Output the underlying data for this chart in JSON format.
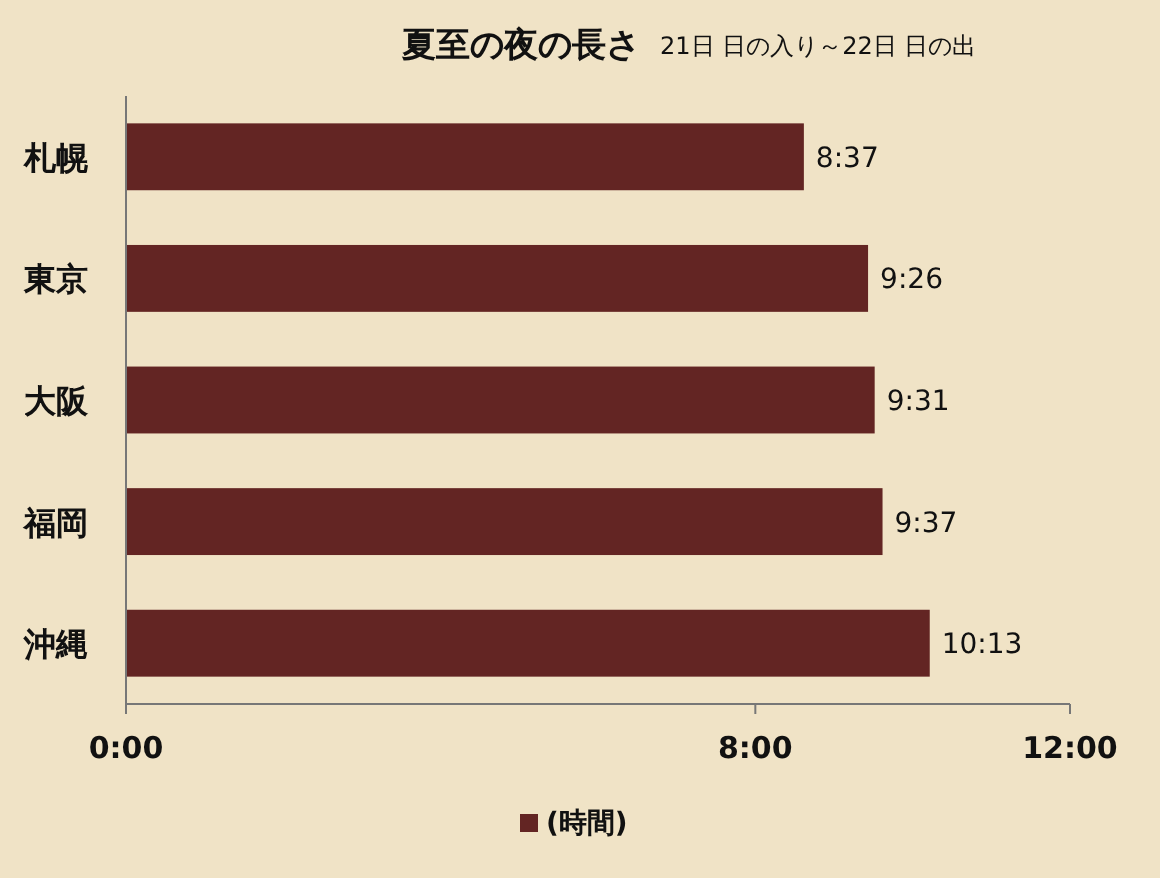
{
  "chart_data": {
    "type": "bar",
    "orientation": "horizontal",
    "title": "夏至の夜の長さ",
    "subtitle": "21日 日の入り～22日 日の出",
    "categories": [
      "札幌",
      "東京",
      "大阪",
      "福岡",
      "沖縄"
    ],
    "series": [
      {
        "name": "(時間)",
        "color": "#632523",
        "values": [
          8.617,
          9.433,
          9.517,
          9.617,
          10.217
        ],
        "value_labels": [
          "8:37",
          "9:26",
          "9:31",
          "9:37",
          "10:13"
        ]
      }
    ],
    "xlim": [
      0,
      12
    ],
    "xticks": [
      {
        "value": 0,
        "label": "0:00"
      },
      {
        "value": 8,
        "label": "8:00"
      },
      {
        "value": 12,
        "label": "12:00"
      }
    ],
    "grid": false,
    "legend": "bottom"
  }
}
